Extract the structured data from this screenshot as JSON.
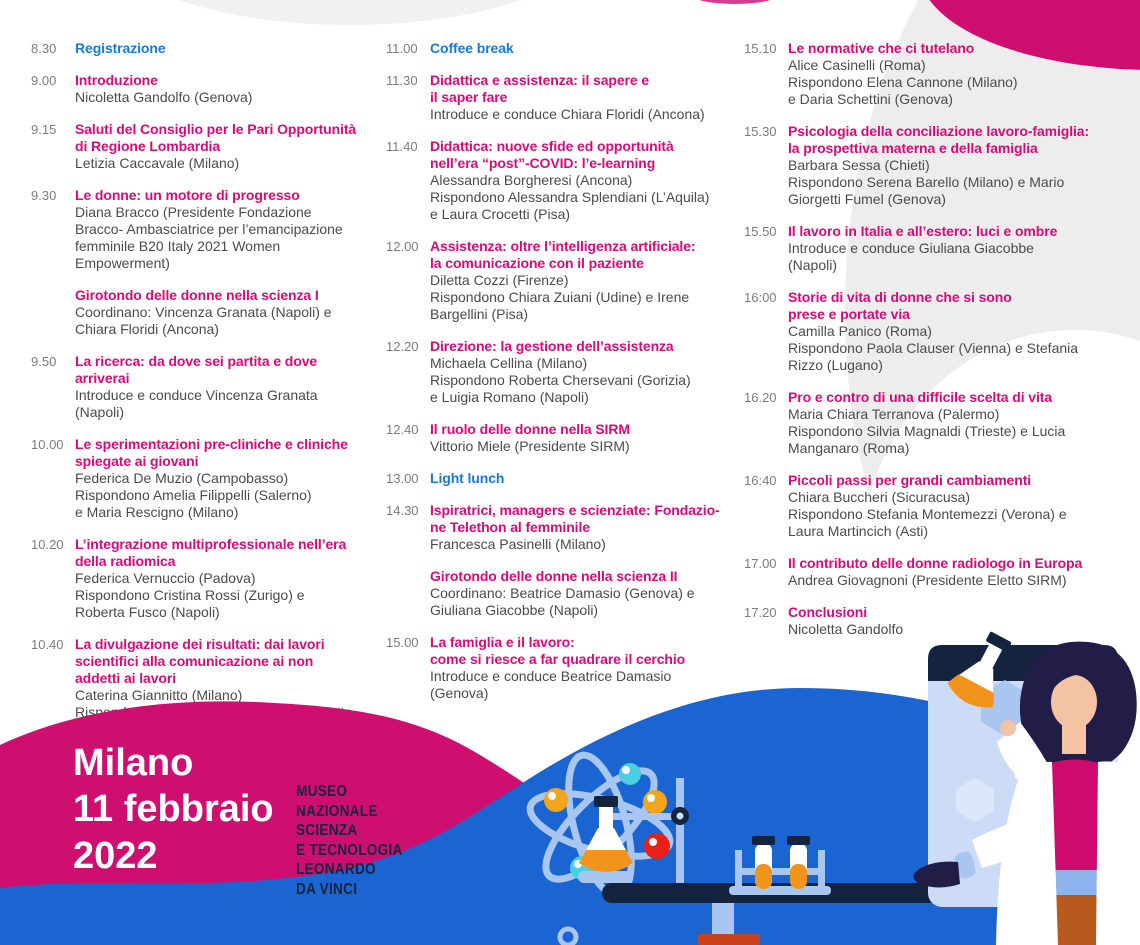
{
  "poster": {
    "city_date": "Milano\n11 febbraio\n2022",
    "venue": "MUSEO\nNAZIONALE\nSCIENZA\nE TECNOLOGIA\nLEONARDO\nDA VINCI"
  },
  "colors": {
    "accent_pink": "#d90a77",
    "accent_blue": "#1778dd",
    "wave_pink": "#ce0f6f",
    "wave_blue": "#1b65d2",
    "navy": "#14243e",
    "time_gray": "#7c7c7c",
    "body_text": "#4b4b4b",
    "blob_gray": "#ededed"
  },
  "illustration": {
    "icons": [
      "atom-icon",
      "flask-icon",
      "bunsen-flame-icon",
      "test-tubes-icon",
      "microscope-icon",
      "browser-window-icon",
      "window-controls-icon",
      "hexagon-icon",
      "scientist-illustration",
      "lab-table"
    ]
  },
  "schedule": {
    "columns": [
      {
        "entries": [
          {
            "time": "8.30",
            "title": "Registrazione",
            "accent": "blue",
            "speakers": ""
          },
          {
            "time": "9.00",
            "title": "Introduzione",
            "accent": "pink",
            "speakers": "Nicoletta Gandolfo (Genova)"
          },
          {
            "time": "9.15",
            "title": "Saluti del Consiglio per le Pari Opportunità\ndi Regione Lombardia",
            "accent": "pink",
            "speakers": "Letizia Caccavale (Milano)"
          },
          {
            "time": "9.30",
            "title": "Le donne: un motore di progresso",
            "accent": "pink",
            "speakers": "Diana Bracco (Presidente Fondazione\nBracco- Ambasciatrice per l’emancipazione\nfemminile B20 Italy 2021 Women\nEmpowerment)"
          },
          {
            "time": "",
            "title": "Girotondo delle donne nella scienza I",
            "accent": "pink",
            "speakers": "Coordinano: Vincenza Granata (Napoli) e\nChiara Floridi (Ancona)"
          },
          {
            "time": "9.50",
            "title": "La ricerca: da dove sei partita e dove\narriverai",
            "accent": "pink",
            "speakers": "Introduce e conduce Vincenza Granata\n(Napoli)"
          },
          {
            "time": "10.00",
            "title": "Le sperimentazioni pre-cliniche e cliniche\nspiegate ai giovani",
            "accent": "pink",
            "speakers": "Federica De Muzio (Campobasso)\nRispondono Amelia Filippelli (Salerno)\ne Maria Rescigno (Milano)"
          },
          {
            "time": "10.20",
            "title": "L’integrazione multiprofessionale nell’era\ndella radiomica",
            "accent": "pink",
            "speakers": "Federica Vernuccio (Padova)\nRispondono Cristina Rossi (Zurigo) e\nRoberta Fusco (Napoli)"
          },
          {
            "time": "10.40",
            "title": "La divulgazione dei risultati: dai lavori\nscientifici alla comunicazione ai non\naddetti ai lavori",
            "accent": "pink",
            "speakers": "Caterina Giannitto (Milano)\nRispondono Elsa Cossu (Roma) e Elisabetta\nTrinchero (Milano)"
          }
        ]
      },
      {
        "entries": [
          {
            "time": "11.00",
            "title": "Coffee break",
            "accent": "blue",
            "speakers": ""
          },
          {
            "time": "11.30",
            "title": "Didattica e assistenza: il sapere e\nil saper fare",
            "accent": "pink",
            "speakers": "Introduce e conduce Chiara Floridi (Ancona)"
          },
          {
            "time": "11.40",
            "title": "Didattica: nuove sfide ed opportunità\nnell’era “post”-COVID: l’e-learning",
            "accent": "pink",
            "speakers": "Alessandra Borgheresi (Ancona)\nRispondono Alessandra Splendiani (L’Aquila)\ne Laura Crocetti (Pisa)"
          },
          {
            "time": "12.00",
            "title": "Assistenza: oltre l’intelligenza artificiale:\nla comunicazione con il paziente",
            "accent": "pink",
            "speakers": "Diletta Cozzi (Firenze)\nRispondono Chiara Zuiani (Udine) e Irene\nBargellini (Pisa)"
          },
          {
            "time": "12.20",
            "title": "Direzione: la gestione dell’assistenza",
            "accent": "pink",
            "speakers": "Michaela Cellina (Milano)\nRispondono Roberta Chersevani (Gorizia)\ne Luigia Romano (Napoli)"
          },
          {
            "time": "12.40",
            "title": "Il ruolo delle donne nella SIRM",
            "accent": "pink",
            "speakers": "Vittorio Miele (Presidente SIRM)"
          },
          {
            "time": "13.00",
            "title": "Light lunch",
            "accent": "blue",
            "speakers": ""
          },
          {
            "time": "14.30",
            "title": "Ispiratrici, managers e scienziate: Fondazio-\nne Telethon al femminile",
            "accent": "pink",
            "speakers": "Francesca Pasinelli (Milano)"
          },
          {
            "time": "",
            "title": "Girotondo delle donne nella scienza II",
            "accent": "pink",
            "speakers": "Coordinano: Beatrice Damasio (Genova) e\nGiuliana Giacobbe (Napoli)"
          },
          {
            "time": "15.00",
            "title": "La famiglia e il lavoro:\ncome si riesce a far quadrare il cerchio",
            "accent": "pink",
            "speakers": "Introduce e conduce Beatrice Damasio\n(Genova)"
          }
        ]
      },
      {
        "entries": [
          {
            "time": "15.10",
            "title": "Le normative che ci tutelano",
            "accent": "pink",
            "speakers": "Alice Casinelli (Roma)\nRispondono Elena Cannone (Milano)\ne Daria Schettini (Genova)"
          },
          {
            "time": "15.30",
            "title": "Psicologia della conciliazione lavoro-famiglia:\nla prospettiva materna e della famiglia",
            "accent": "pink",
            "speakers": "Barbara Sessa (Chieti)\nRispondono Serena Barello (Milano) e Mario\nGiorgetti Fumel (Genova)"
          },
          {
            "time": "15.50",
            "title": "Il lavoro in Italia e all’estero: luci e ombre",
            "accent": "pink",
            "speakers": "Introduce e conduce Giuliana Giacobbe\n(Napoli)"
          },
          {
            "time": "16:00",
            "title": "Storie di vita di donne che si sono\nprese e portate via",
            "accent": "pink",
            "speakers": "Camilla Panico (Roma)\nRispondono Paola Clauser (Vienna) e Stefania\nRizzo (Lugano)"
          },
          {
            "time": "16.20",
            "title": "Pro e contro di una difficile scelta di vita",
            "accent": "pink",
            "speakers": "Maria Chiara Terranova (Palermo)\nRispondono Silvia Magnaldi (Trieste) e Lucia\nManganaro (Roma)"
          },
          {
            "time": "16:40",
            "title": "Piccoli passi per grandi cambiamenti",
            "accent": "pink",
            "speakers": "Chiara Buccheri (Sicuracusa)\nRispondono Stefania Montemezzi (Verona) e\nLaura Martincich (Asti)"
          },
          {
            "time": "17.00",
            "title": "Il contributo delle donne radiologo in Europa",
            "accent": "pink",
            "speakers": "Andrea Giovagnoni (Presidente Eletto SIRM)"
          },
          {
            "time": "17.20",
            "title": "Conclusioni",
            "accent": "pink",
            "speakers": "Nicoletta Gandolfo"
          }
        ]
      }
    ]
  }
}
